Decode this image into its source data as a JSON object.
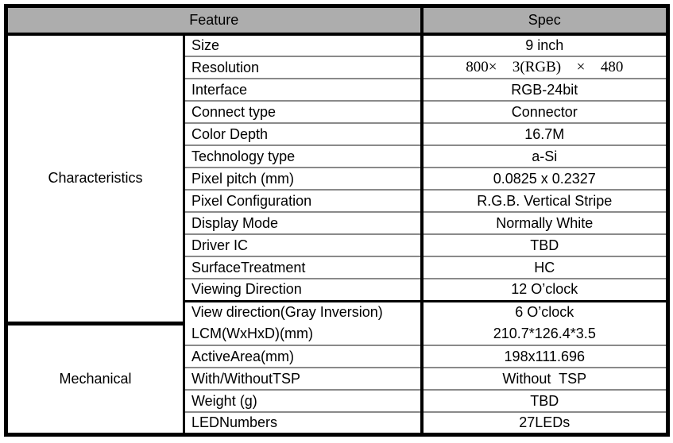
{
  "header": {
    "feature": "Feature",
    "spec": "Spec"
  },
  "colors": {
    "header_bg": "#adadad",
    "grid_black": "#000000",
    "row_divider_gray": "#8a8a8a"
  },
  "sections": [
    {
      "category": "Characteristics",
      "rows": [
        {
          "feature": "Size",
          "spec": "9 inch"
        },
        {
          "feature": "Resolution",
          "spec": "800×  3(RGB)  ×  480"
        },
        {
          "feature": "Interface",
          "spec": "RGB-24bit"
        },
        {
          "feature": "Connect type",
          "spec": "Connector"
        },
        {
          "feature": "Color Depth",
          "spec": "16.7M"
        },
        {
          "feature": "Technology type",
          "spec": "a-Si"
        },
        {
          "feature": "Pixel pitch (mm)",
          "spec": "0.0825 x 0.2327"
        },
        {
          "feature": "Pixel Configuration",
          "spec": "R.G.B. Vertical Stripe"
        },
        {
          "feature": "Display Mode",
          "spec": "Normally White"
        },
        {
          "feature": "Driver IC",
          "spec": "TBD"
        },
        {
          "feature": "SurfaceTreatment",
          "spec": "HC"
        },
        {
          "feature": "Viewing Direction",
          "spec": "12 O’clock"
        },
        {
          "feature": "View direction(Gray Inversion)",
          "spec": "6 O’clock"
        }
      ]
    },
    {
      "category": "Mechanical",
      "rows": [
        {
          "feature": "LCM(WxHxD)(mm)",
          "spec": "210.7*126.4*3.5"
        },
        {
          "feature": "ActiveArea(mm)",
          "spec": "198x111.696"
        },
        {
          "feature": "With/WithoutTSP",
          "spec": "Without  TSP"
        },
        {
          "feature": "Weight (g)",
          "spec": "TBD"
        },
        {
          "feature": "LEDNumbers",
          "spec": "27LEDs"
        }
      ]
    }
  ]
}
